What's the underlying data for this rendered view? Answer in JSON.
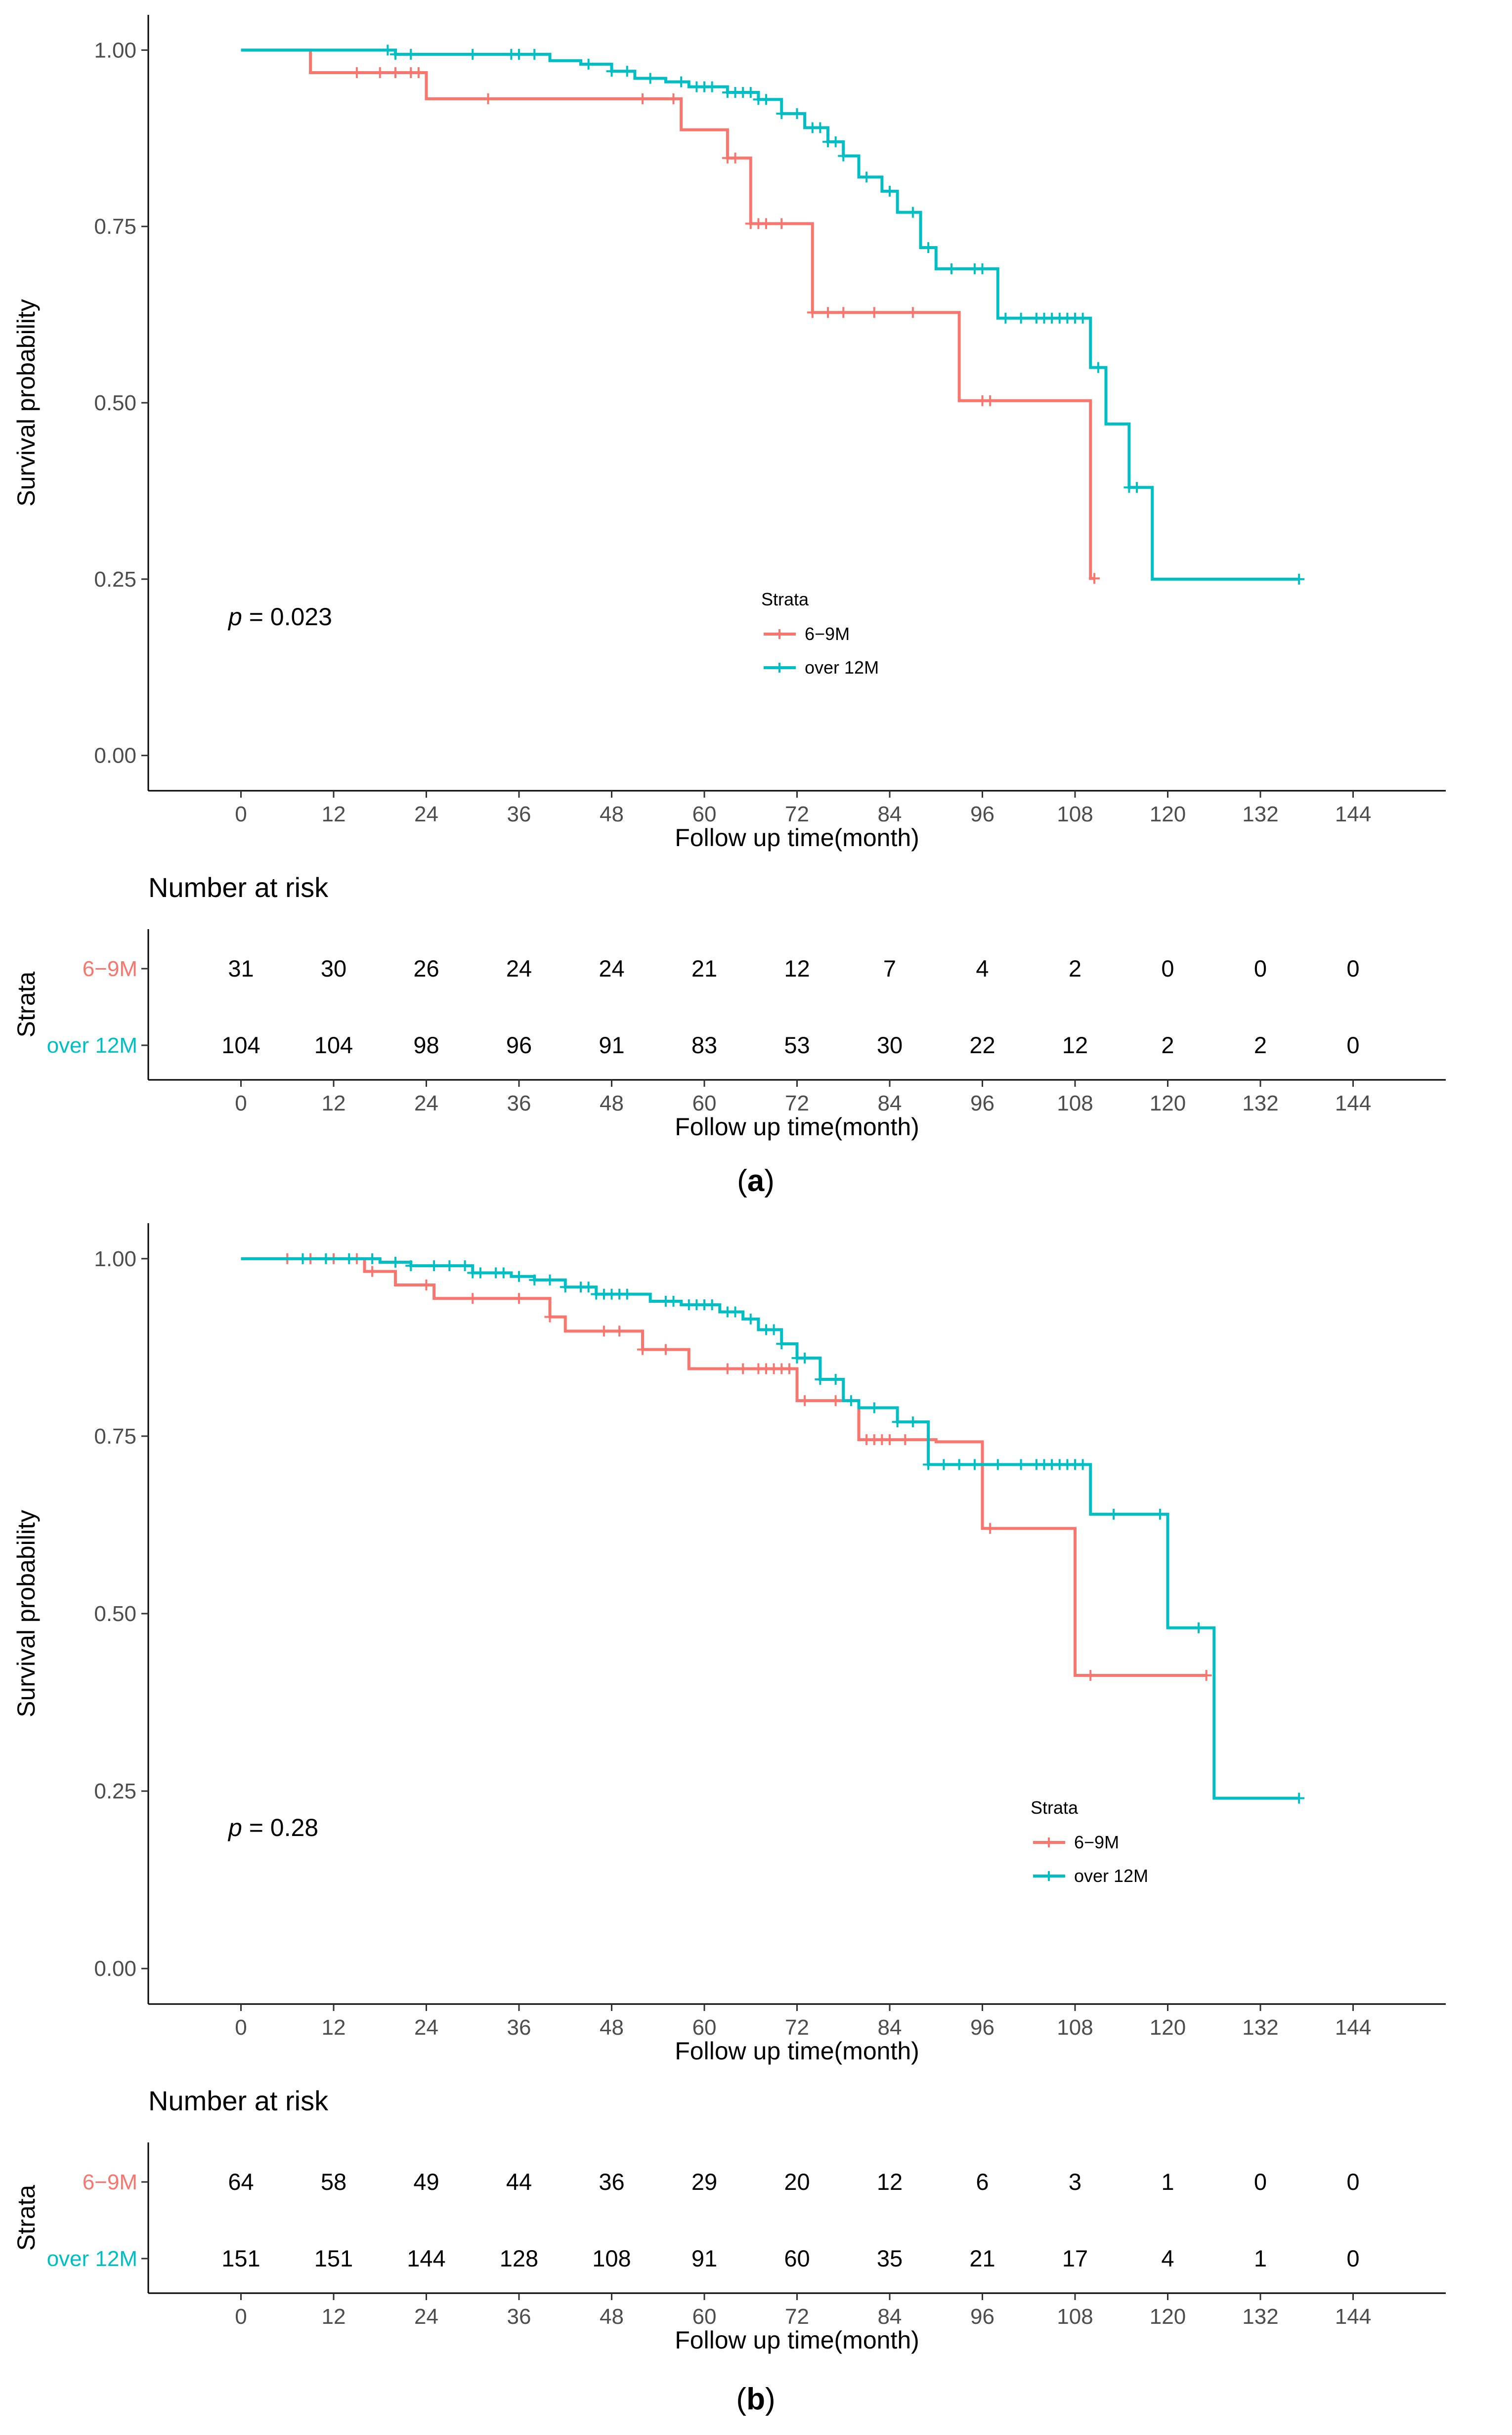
{
  "colors": {
    "group1": "#F8766D",
    "group2": "#00BFC4"
  },
  "panels": [
    {
      "caption": "a",
      "pvalue_label": "p",
      "pvalue_text": " = 0.023",
      "risk_table": {
        "title": "Number at risk",
        "ylabel": "Strata",
        "rows": [
          {
            "label": "6−9M",
            "values": [
              "31",
              "30",
              "26",
              "24",
              "24",
              "21",
              "12",
              "7",
              "4",
              "2",
              "0",
              "0",
              "0"
            ]
          },
          {
            "label": "over 12M",
            "values": [
              "104",
              "104",
              "98",
              "96",
              "91",
              "83",
              "53",
              "30",
              "22",
              "12",
              "2",
              "2",
              "0"
            ]
          }
        ]
      }
    },
    {
      "caption": "b",
      "pvalue_label": "p",
      "pvalue_text": " = 0.28",
      "risk_table": {
        "title": "Number at risk",
        "ylabel": "Strata",
        "rows": [
          {
            "label": "6−9M",
            "values": [
              "64",
              "58",
              "49",
              "44",
              "36",
              "29",
              "20",
              "12",
              "6",
              "3",
              "1",
              "0",
              "0"
            ]
          },
          {
            "label": "over 12M",
            "values": [
              "151",
              "151",
              "144",
              "128",
              "108",
              "91",
              "60",
              "35",
              "21",
              "17",
              "4",
              "1",
              "0"
            ]
          }
        ]
      }
    }
  ],
  "chart_data": [
    {
      "type": "line",
      "title": "",
      "xlabel": "Follow up time(month)",
      "ylabel": "Survival probability",
      "xlim": [
        -12,
        156
      ],
      "ylim": [
        -0.05,
        1.05
      ],
      "x_ticks": [
        "0",
        "12",
        "24",
        "36",
        "48",
        "60",
        "72",
        "84",
        "96",
        "108",
        "120",
        "132",
        "144"
      ],
      "y_ticks": [
        "0.00",
        "0.25",
        "0.50",
        "0.75",
        "1.00"
      ],
      "legend": {
        "title": "Strata",
        "position": "bottom-center",
        "entries": [
          "6−9M",
          "over 12M"
        ]
      },
      "series": [
        {
          "name": "6−9M",
          "steps": [
            [
              0,
              1
            ],
            [
              9,
              0.968
            ],
            [
              24,
              0.931
            ],
            [
              57,
              0.887
            ],
            [
              63,
              0.847
            ],
            [
              66,
              0.754
            ],
            [
              74,
              0.628
            ],
            [
              93,
              0.503
            ],
            [
              110,
              0.251
            ]
          ],
          "censor_x": [
            15,
            18,
            20,
            22,
            23,
            32,
            52,
            56,
            63,
            64,
            66,
            67,
            68,
            70,
            74,
            76,
            78,
            82,
            87,
            96,
            97,
            110.5
          ]
        },
        {
          "name": "over 12M",
          "steps": [
            [
              0,
              1
            ],
            [
              20,
              0.994
            ],
            [
              40,
              0.985
            ],
            [
              44,
              0.98
            ],
            [
              48,
              0.97
            ],
            [
              51,
              0.96
            ],
            [
              55,
              0.955
            ],
            [
              58,
              0.948
            ],
            [
              63,
              0.94
            ],
            [
              67,
              0.93
            ],
            [
              70,
              0.91
            ],
            [
              73,
              0.89
            ],
            [
              76,
              0.87
            ],
            [
              78,
              0.85
            ],
            [
              80,
              0.82
            ],
            [
              83,
              0.8
            ],
            [
              85,
              0.77
            ],
            [
              88,
              0.72
            ],
            [
              90,
              0.69
            ],
            [
              98,
              0.62
            ],
            [
              110,
              0.55
            ],
            [
              112,
              0.47
            ],
            [
              115,
              0.38
            ],
            [
              118,
              0.25
            ]
          ],
          "censor_x": [
            19,
            20,
            22,
            30,
            35,
            36,
            38,
            45,
            48,
            50,
            53,
            57,
            59,
            60,
            61,
            63,
            64,
            65,
            66,
            67,
            68,
            70,
            72,
            74,
            75,
            76,
            77,
            78,
            81,
            84,
            87,
            89,
            92,
            95,
            96,
            99,
            101,
            103,
            104,
            105,
            106,
            107,
            108,
            109,
            111,
            115,
            116,
            137
          ]
        }
      ]
    },
    {
      "type": "line",
      "title": "",
      "xlabel": "Follow up time(month)",
      "ylabel": "Survival probability",
      "xlim": [
        -12,
        156
      ],
      "ylim": [
        -0.05,
        1.05
      ],
      "x_ticks": [
        "0",
        "12",
        "24",
        "36",
        "48",
        "60",
        "72",
        "84",
        "96",
        "108",
        "120",
        "132",
        "144"
      ],
      "y_ticks": [
        "0.00",
        "0.25",
        "0.50",
        "0.75",
        "1.00"
      ],
      "legend": {
        "title": "Strata",
        "position": "bottom-right",
        "entries": [
          "6−9M",
          "over 12M"
        ]
      },
      "series": [
        {
          "name": "6−9M",
          "steps": [
            [
              0,
              1
            ],
            [
              16,
              0.982
            ],
            [
              20,
              0.963
            ],
            [
              25,
              0.944
            ],
            [
              40,
              0.918
            ],
            [
              42,
              0.898
            ],
            [
              52,
              0.872
            ],
            [
              58,
              0.845
            ],
            [
              72,
              0.8
            ],
            [
              80,
              0.745
            ],
            [
              90,
              0.742
            ],
            [
              96,
              0.62
            ],
            [
              108,
              0.413
            ]
          ],
          "censor_x": [
            6,
            9,
            12,
            15,
            17,
            24,
            30,
            36,
            40,
            47,
            49,
            52,
            55,
            63,
            65,
            67,
            68,
            69,
            70,
            71,
            73,
            77,
            81,
            82,
            83,
            84,
            86,
            97,
            110,
            125
          ]
        },
        {
          "name": "over 12M",
          "steps": [
            [
              0,
              1
            ],
            [
              18,
              0.995
            ],
            [
              22,
              0.99
            ],
            [
              30,
              0.98
            ],
            [
              35,
              0.975
            ],
            [
              38,
              0.97
            ],
            [
              42,
              0.96
            ],
            [
              46,
              0.95
            ],
            [
              53,
              0.94
            ],
            [
              57,
              0.935
            ],
            [
              62,
              0.925
            ],
            [
              65,
              0.915
            ],
            [
              67,
              0.9
            ],
            [
              70,
              0.88
            ],
            [
              72,
              0.86
            ],
            [
              75,
              0.83
            ],
            [
              78,
              0.8
            ],
            [
              80,
              0.79
            ],
            [
              85,
              0.77
            ],
            [
              89,
              0.71
            ],
            [
              99,
              0.71
            ],
            [
              110,
              0.64
            ],
            [
              120,
              0.48
            ],
            [
              126,
              0.24
            ]
          ],
          "censor_x": [
            8,
            11,
            14,
            17,
            20,
            22,
            25,
            27,
            29,
            30,
            31,
            33,
            34,
            36,
            38,
            40,
            42,
            44,
            45,
            46,
            47,
            48,
            49,
            50,
            55,
            56,
            58,
            59,
            60,
            61,
            63,
            64,
            66,
            68,
            69,
            70,
            72,
            73,
            75,
            77,
            79,
            82,
            85,
            87,
            89,
            91,
            93,
            95,
            98,
            101,
            103,
            104,
            105,
            106,
            107,
            108,
            109,
            113,
            119,
            124,
            137
          ]
        }
      ]
    }
  ]
}
